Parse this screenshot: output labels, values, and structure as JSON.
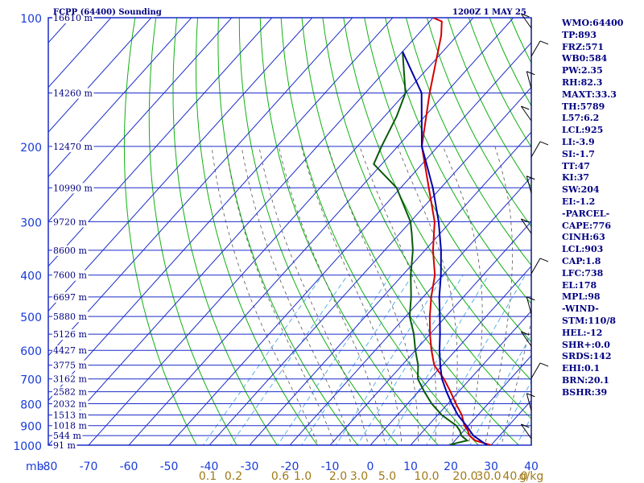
{
  "header": {
    "station": "FCPP (64400) Sounding",
    "time": "1200Z  1 MAY 25"
  },
  "indices": [
    "WMO:64400",
    "TP:893",
    "FRZ:571",
    "WB0:584",
    "PW:2.35",
    "RH:82.3",
    "MAXT:33.3",
    "TH:5789",
    "L57:6.2",
    "LCL:925",
    "LI:-3.9",
    "SI:-1.7",
    "TT:47",
    "KI:37",
    "SW:204",
    "EI:-1.2",
    "-PARCEL-",
    "CAPE:776",
    "CINH:63",
    "LCL:903",
    "CAP:1.8",
    "LFC:738",
    "EL:178",
    "MPL:98",
    "-WIND-",
    "STM:110/8",
    "HEL:-12",
    "SHR+:0.0",
    "SRDS:142",
    "EHI:0.1",
    "BRN:20.1",
    "BSHR:39"
  ],
  "chart_data": {
    "type": "line",
    "title": "FCPP (64400) Sounding",
    "ylabel": "mb",
    "y_scale": "log",
    "pressure_ticks": [
      100,
      200,
      300,
      400,
      500,
      600,
      700,
      800,
      900,
      1000
    ],
    "temp_ticks": [
      -80,
      -70,
      -60,
      -50,
      -40,
      -30,
      -20,
      -10,
      0,
      10,
      20,
      30,
      40
    ],
    "temp_tick_labels": [
      "-80",
      "-70",
      "-60",
      "-50",
      "-40",
      "-30",
      "-20",
      "-10",
      "0",
      "10",
      "20",
      "30",
      "40"
    ],
    "mixing_ratio_labels": [
      "0.1",
      "0.2",
      "0.6",
      "1.0",
      "2.0",
      "3.0",
      "5.0",
      "10.0",
      "20.0",
      "30.0",
      "40.0",
      "g/kg"
    ],
    "mixing_ratio_values": [
      0.1,
      0.2,
      0.6,
      1.0,
      2.0,
      3.0,
      5.0,
      10.0,
      20.0,
      30.0,
      40.0
    ],
    "height_levels": [
      {
        "p": 100,
        "label": "16610 m"
      },
      {
        "p": 150,
        "label": "14260 m"
      },
      {
        "p": 200,
        "label": "12470 m"
      },
      {
        "p": 250,
        "label": "10990 m"
      },
      {
        "p": 300,
        "label": "9720 m"
      },
      {
        "p": 350,
        "label": "8600 m"
      },
      {
        "p": 400,
        "label": "7600 m"
      },
      {
        "p": 450,
        "label": "6697 m"
      },
      {
        "p": 500,
        "label": "5880 m"
      },
      {
        "p": 550,
        "label": "5126 m"
      },
      {
        "p": 600,
        "label": "4427 m"
      },
      {
        "p": 650,
        "label": "3775 m"
      },
      {
        "p": 700,
        "label": "3162 m"
      },
      {
        "p": 750,
        "label": "2582 m"
      },
      {
        "p": 800,
        "label": "2032 m"
      },
      {
        "p": 850,
        "label": "1513 m"
      },
      {
        "p": 900,
        "label": "1018 m"
      },
      {
        "p": 950,
        "label": "544 m"
      },
      {
        "p": 1000,
        "label": "91 m"
      }
    ],
    "series": [
      {
        "key": "temperature",
        "color": "#d40000",
        "points": [
          [
            1000,
            30
          ],
          [
            975,
            25
          ],
          [
            950,
            22.5
          ],
          [
            925,
            21
          ],
          [
            900,
            19
          ],
          [
            850,
            16
          ],
          [
            800,
            12
          ],
          [
            750,
            8
          ],
          [
            700,
            3.5
          ],
          [
            650,
            -2
          ],
          [
            600,
            -6
          ],
          [
            550,
            -10
          ],
          [
            500,
            -14
          ],
          [
            450,
            -18
          ],
          [
            400,
            -22
          ],
          [
            350,
            -28
          ],
          [
            300,
            -34
          ],
          [
            250,
            -43
          ],
          [
            200,
            -54
          ],
          [
            150,
            -64
          ],
          [
            110,
            -74
          ],
          [
            102,
            -77
          ],
          [
            100,
            -80
          ]
        ]
      },
      {
        "key": "dewpoint",
        "color": "#0a5a0a",
        "points": [
          [
            1000,
            21
          ],
          [
            995,
            20
          ],
          [
            975,
            23
          ],
          [
            950,
            20.5
          ],
          [
            925,
            19
          ],
          [
            900,
            17
          ],
          [
            850,
            11
          ],
          [
            800,
            6
          ],
          [
            750,
            1.5
          ],
          [
            700,
            -3
          ],
          [
            650,
            -6
          ],
          [
            600,
            -10
          ],
          [
            550,
            -14
          ],
          [
            500,
            -19
          ],
          [
            450,
            -23
          ],
          [
            400,
            -28
          ],
          [
            350,
            -33
          ],
          [
            320,
            -37
          ],
          [
            300,
            -40
          ],
          [
            250,
            -51
          ],
          [
            220,
            -62
          ],
          [
            200,
            -64
          ],
          [
            170,
            -67
          ],
          [
            150,
            -70
          ],
          [
            120,
            -80
          ]
        ]
      },
      {
        "key": "parcel",
        "color": "#0000aa",
        "points": [
          [
            1000,
            29
          ],
          [
            950,
            23.5
          ],
          [
            900,
            19.5
          ],
          [
            850,
            15
          ],
          [
            800,
            11
          ],
          [
            750,
            7
          ],
          [
            700,
            3
          ],
          [
            650,
            -0.5
          ],
          [
            600,
            -4
          ],
          [
            550,
            -7.5
          ],
          [
            500,
            -11.5
          ],
          [
            450,
            -16
          ],
          [
            400,
            -20.5
          ],
          [
            350,
            -26
          ],
          [
            300,
            -33
          ],
          [
            250,
            -42
          ],
          [
            200,
            -54
          ],
          [
            150,
            -66
          ],
          [
            120,
            -80
          ]
        ]
      }
    ]
  }
}
